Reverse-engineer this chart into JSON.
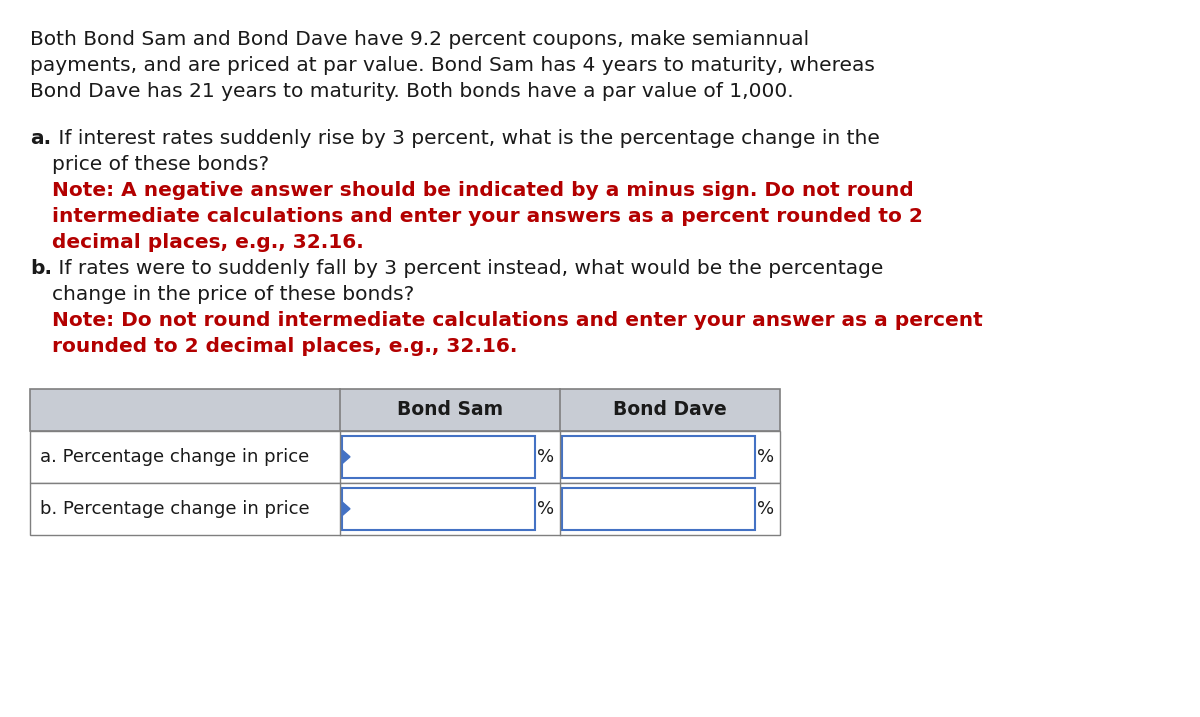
{
  "background_color": "#ffffff",
  "text_color_black": "#1a1a1a",
  "text_color_red": "#b30000",
  "header_bg_color": "#c8ccd4",
  "input_box_border": "#4472c4",
  "table_border_color": "#7f7f7f",
  "row_bg_odd": "#ffffff",
  "para1_line1": "Both Bond Sam and Bond Dave have 9.2 percent coupons, make semiannual",
  "para1_line2": "payments, and are priced at par value. Bond Sam has 4 years to maturity, whereas",
  "para1_line3": "Bond Dave has 21 years to maturity. Both bonds have a par value of 1,000.",
  "a_label": "a.",
  "a_text_line1": " If interest rates suddenly rise by 3 percent, what is the percentage change in the",
  "a_text_line2": "    price of these bonds?",
  "a_note_line1": "    Note: A negative answer should be indicated by a minus sign. Do not round",
  "a_note_line2": "    intermediate calculations and enter your answers as a percent rounded to 2",
  "a_note_line3": "    decimal places, e.g., 32.16.",
  "b_label": "b.",
  "b_text_line1": " If rates were to suddenly fall by 3 percent instead, what would be the percentage",
  "b_text_line2": "    change in the price of these bonds?",
  "b_note_line1": "    Note: Do not round intermediate calculations and enter your answer as a percent",
  "b_note_line2": "    rounded to 2 decimal places, e.g., 32.16.",
  "col_bond_sam": "Bond Sam",
  "col_bond_dave": "Bond Dave",
  "row1_label": "a. Percentage change in price",
  "row2_label": "b. Percentage change in price",
  "percent": "%",
  "font_size_body": 14.5,
  "font_size_note": 14.5,
  "font_size_table_hdr": 13.5,
  "font_size_table_body": 13.0
}
